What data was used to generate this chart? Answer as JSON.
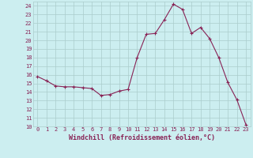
{
  "x": [
    0,
    1,
    2,
    3,
    4,
    5,
    6,
    7,
    8,
    9,
    10,
    11,
    12,
    13,
    14,
    15,
    16,
    17,
    18,
    19,
    20,
    21,
    22,
    23
  ],
  "y": [
    15.8,
    15.3,
    14.7,
    14.6,
    14.6,
    14.5,
    14.4,
    13.6,
    13.7,
    14.1,
    14.3,
    18.0,
    20.7,
    20.8,
    22.4,
    24.2,
    23.6,
    20.8,
    21.5,
    20.2,
    18.0,
    15.1,
    13.1,
    10.2
  ],
  "line_color": "#882255",
  "marker": "+",
  "marker_size": 3,
  "linewidth": 0.8,
  "xlabel": "Windchill (Refroidissement éolien,°C)",
  "ylim": [
    10,
    24.5
  ],
  "xlim": [
    -0.5,
    23.5
  ],
  "yticks": [
    10,
    11,
    12,
    13,
    14,
    15,
    16,
    17,
    18,
    19,
    20,
    21,
    22,
    23,
    24
  ],
  "xticks": [
    0,
    1,
    2,
    3,
    4,
    5,
    6,
    7,
    8,
    9,
    10,
    11,
    12,
    13,
    14,
    15,
    16,
    17,
    18,
    19,
    20,
    21,
    22,
    23
  ],
  "xtick_labels": [
    "0",
    "1",
    "2",
    "3",
    "4",
    "5",
    "6",
    "7",
    "8",
    "9",
    "10",
    "11",
    "12",
    "13",
    "14",
    "15",
    "16",
    "17",
    "18",
    "19",
    "20",
    "21",
    "22",
    "23"
  ],
  "background_color": "#cceef0",
  "grid_color": "#aacccc",
  "tick_fontsize": 5,
  "xlabel_fontsize": 6,
  "xlabel_fontweight": "bold",
  "marker_color": "#882255"
}
